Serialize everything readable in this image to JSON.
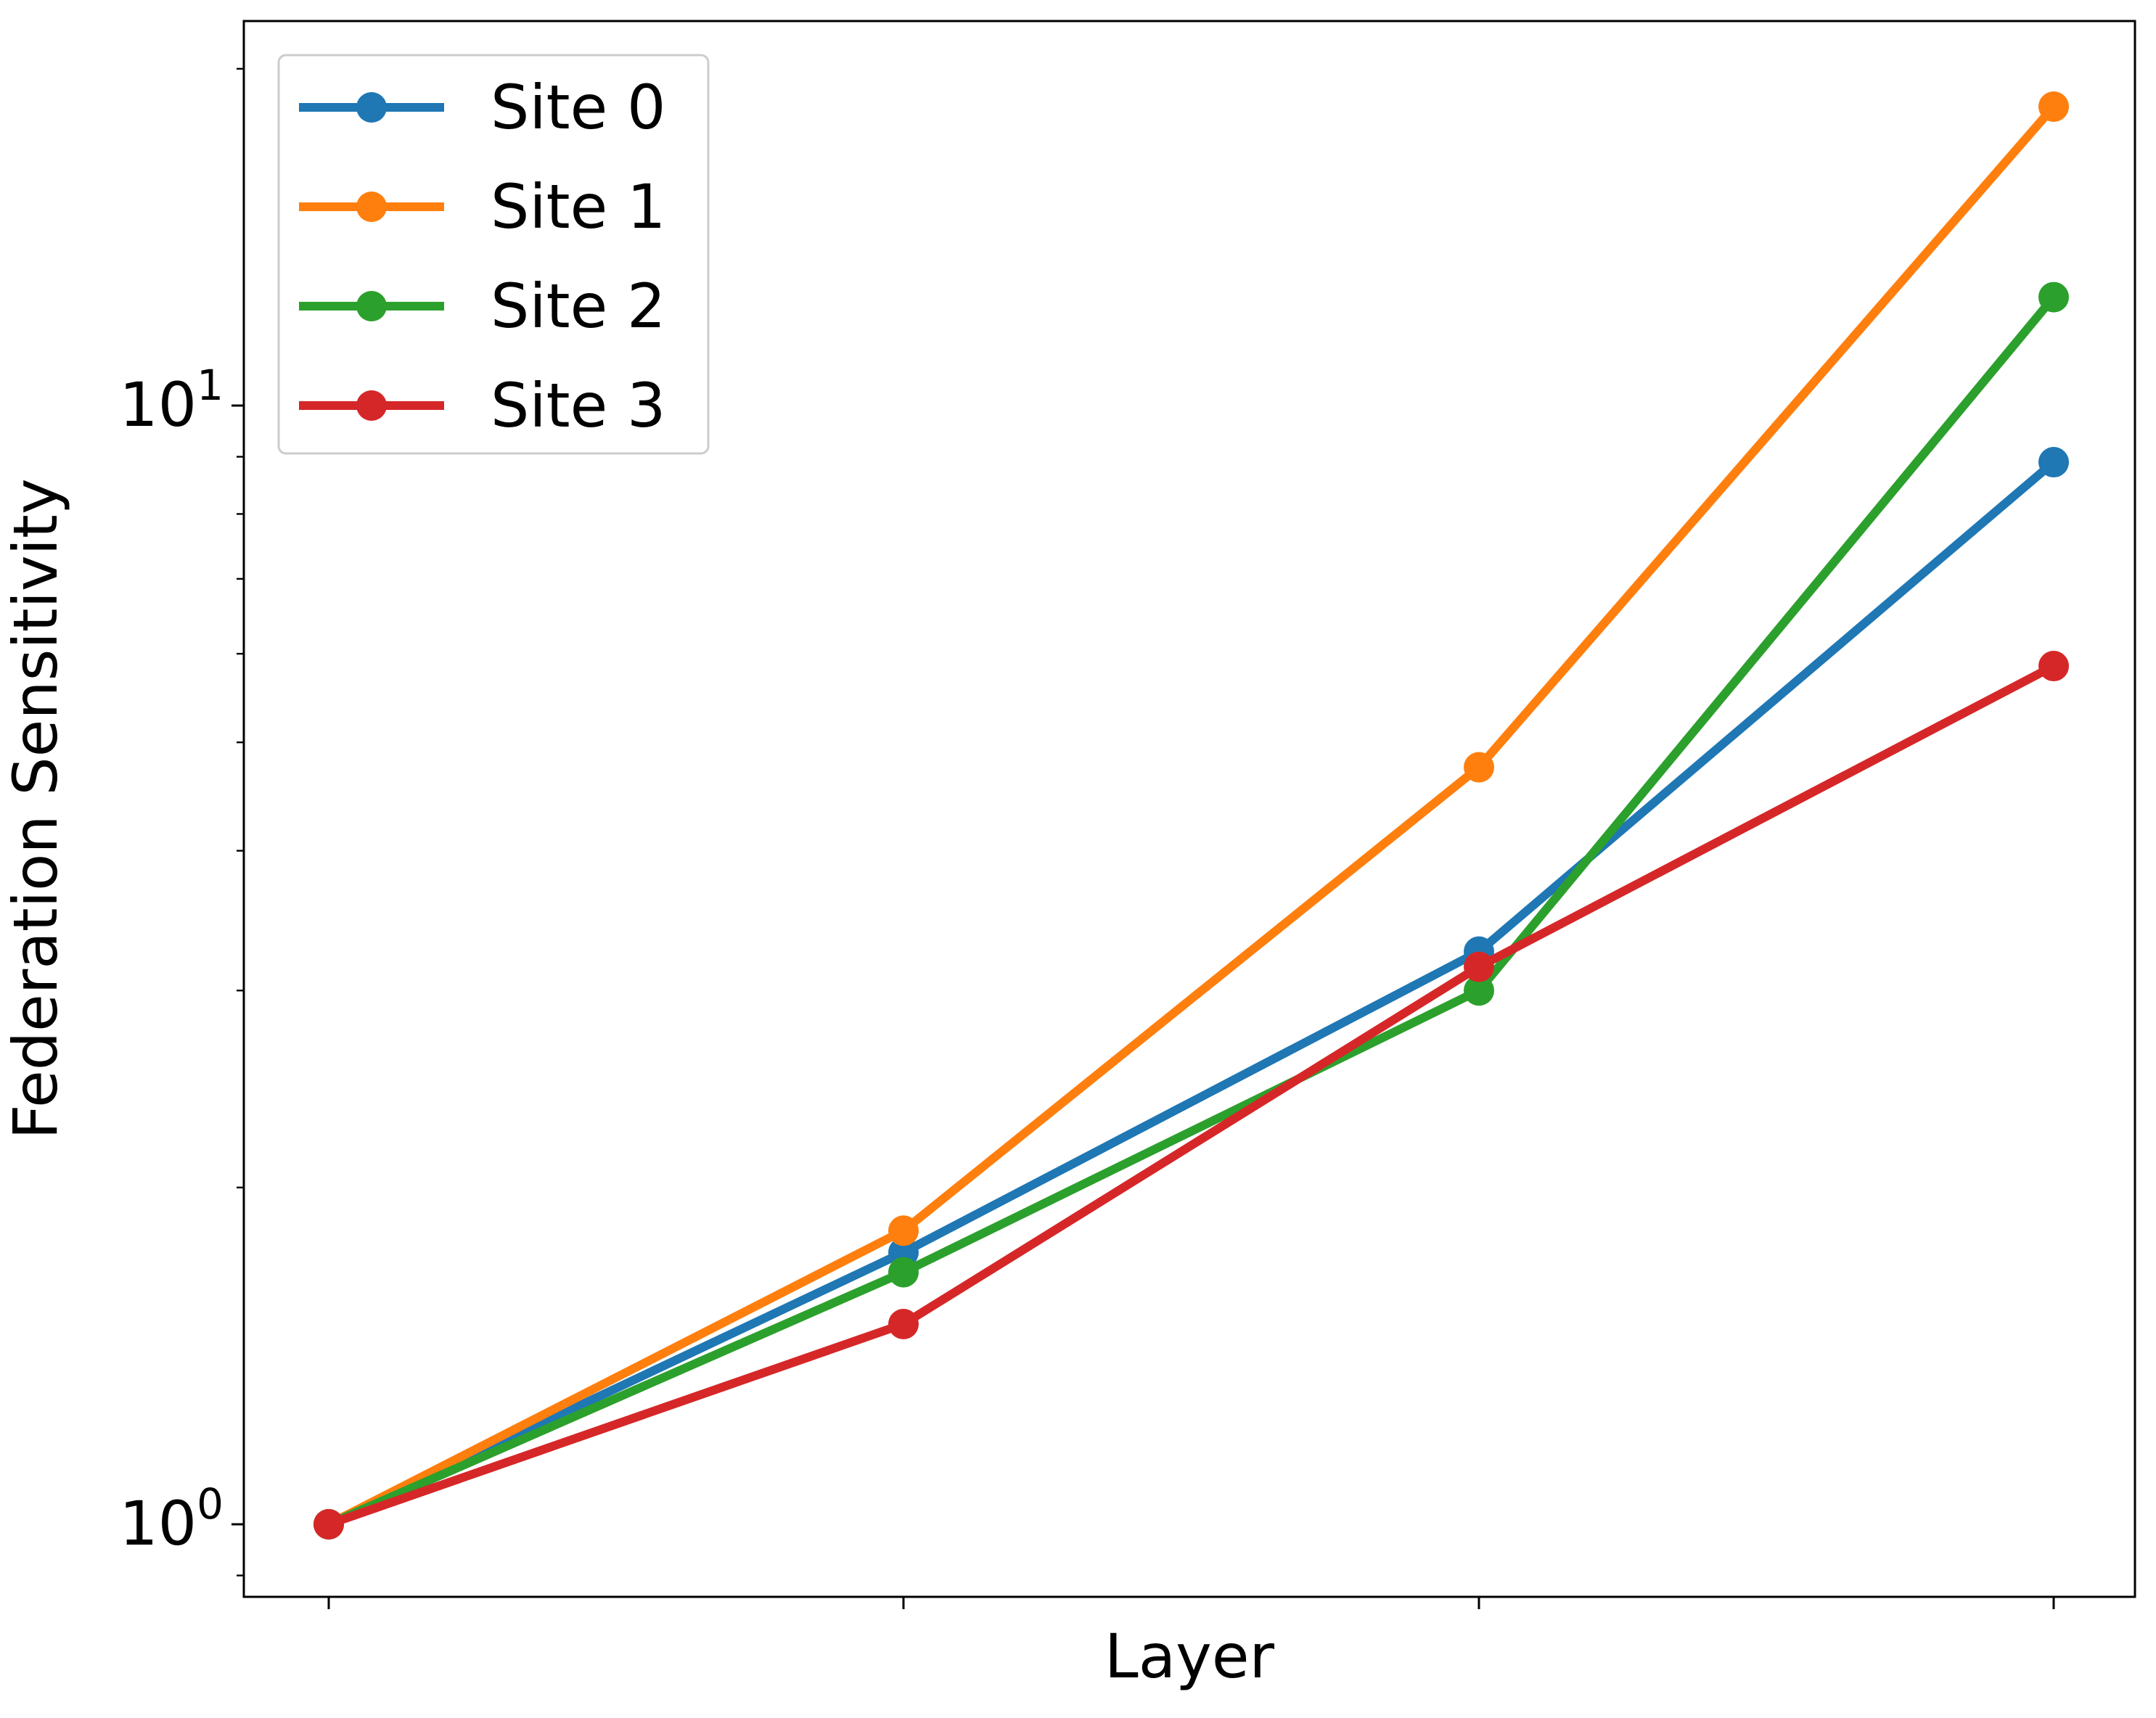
{
  "chart_data": {
    "type": "line",
    "title": "",
    "xlabel": "Layer",
    "ylabel": "Federation Sensitivity",
    "y_scale": "log",
    "ylim": [
      0.88,
      22.0
    ],
    "x": [
      0,
      1,
      2,
      3
    ],
    "x_tick_labels": [
      "",
      "",
      "",
      ""
    ],
    "y_major_ticks": [
      {
        "value": 1,
        "label_base": "10",
        "label_exp": "0"
      },
      {
        "value": 10,
        "label_base": "10",
        "label_exp": "1"
      }
    ],
    "y_minor_ticks": [
      0.9,
      2,
      3,
      4,
      5,
      6,
      7,
      8,
      9,
      20
    ],
    "grid": false,
    "legend_position": "upper-left",
    "series": [
      {
        "name": "Site 0",
        "color": "#1f77b4",
        "values": [
          1.0,
          1.75,
          3.25,
          8.9
        ]
      },
      {
        "name": "Site 1",
        "color": "#ff7f0e",
        "values": [
          1.0,
          1.83,
          4.75,
          18.5
        ]
      },
      {
        "name": "Site 2",
        "color": "#2ca02c",
        "values": [
          1.0,
          1.68,
          3.0,
          12.5
        ]
      },
      {
        "name": "Site 3",
        "color": "#d62728",
        "values": [
          1.0,
          1.51,
          3.15,
          5.85
        ]
      }
    ]
  }
}
